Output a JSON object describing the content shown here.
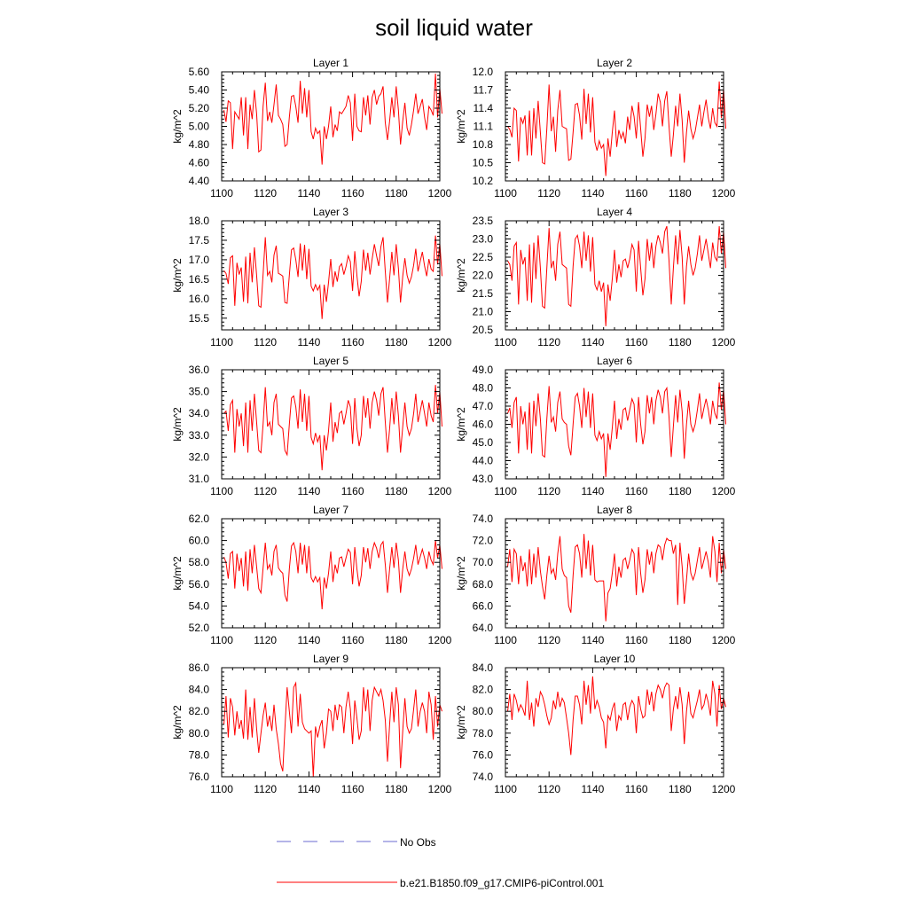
{
  "figure": {
    "title": "soil liquid water",
    "legend": [
      {
        "label": "No Obs",
        "color": "#6a6ad0",
        "dash": "dashed"
      },
      {
        "label": "b.e21.B1850.f09_g17.CMIP6-piControl.001",
        "color": "#ff0000",
        "dash": "solid"
      }
    ]
  },
  "chart_data": [
    {
      "type": "line",
      "title": "Layer 1",
      "xlabel": "",
      "ylabel": "kg/m^2",
      "xlim": [
        1100,
        1200
      ],
      "ylim": [
        4.4,
        5.6
      ],
      "xticks": [
        "1100",
        "1120",
        "1140",
        "1160",
        "1180",
        "1200"
      ],
      "yticks": [
        "4.40",
        "4.60",
        "4.80",
        "5.00",
        "5.20",
        "5.40",
        "5.60"
      ],
      "x_start": 1101,
      "values": [
        5.18,
        5.05,
        5.28,
        5.26,
        4.75,
        5.16,
        5.12,
        5.08,
        5.32,
        4.9,
        5.32,
        4.75,
        5.24,
        5.08,
        5.4,
        5.14,
        4.72,
        4.74,
        5.22,
        5.48,
        5.06,
        5.16,
        5.04,
        5.24,
        5.46,
        5.12,
        5.08,
        5.02,
        4.78,
        4.8,
        5.1,
        5.33,
        5.34,
        5.22,
        5.04,
        5.5,
        5.14,
        5.42,
        5.1,
        5.4,
        4.94,
        4.86,
        4.98,
        4.92,
        4.95,
        4.58,
        5.0,
        4.86,
        5.0,
        5.22,
        4.88,
        5.02,
        4.95,
        5.16,
        5.14,
        5.18,
        5.22,
        5.34,
        5.26,
        4.84,
        5.36,
        5.0,
        4.95,
        4.94,
        5.32,
        5.12,
        5.34,
        5.02,
        5.32,
        5.4,
        5.24,
        5.33,
        5.36,
        5.44,
        5.04,
        4.85,
        5.06,
        5.32,
        5.1,
        5.44,
        5.18,
        4.8,
        5.06,
        5.26,
        4.98,
        4.9,
        5.02,
        5.18,
        5.36,
        5.14,
        5.22,
        5.3,
        5.1,
        4.96,
        5.22,
        5.18,
        5.12,
        5.58,
        5.1,
        5.42,
        5.14
      ]
    },
    {
      "type": "line",
      "title": "Layer 2",
      "xlabel": "",
      "ylabel": "kg/m^2",
      "xlim": [
        1100,
        1200
      ],
      "ylim": [
        10.2,
        12.0
      ],
      "xticks": [
        "1100",
        "1120",
        "1140",
        "1160",
        "1180",
        "1200"
      ],
      "yticks": [
        "10.2",
        "10.5",
        "10.8",
        "11.1",
        "11.4",
        "11.7",
        "12.0"
      ],
      "x_start": 1101,
      "values": [
        11.1,
        11.05,
        10.92,
        11.4,
        11.36,
        10.52,
        11.25,
        11.15,
        11.28,
        10.62,
        11.36,
        10.62,
        11.4,
        10.9,
        11.52,
        11.0,
        10.5,
        10.48,
        11.06,
        11.79,
        11.02,
        11.26,
        10.68,
        11.36,
        11.7,
        11.1,
        11.08,
        11.06,
        10.54,
        10.56,
        11.0,
        11.46,
        11.48,
        11.28,
        10.88,
        11.72,
        11.14,
        11.64,
        11.0,
        11.58,
        10.84,
        10.7,
        10.86,
        10.74,
        10.8,
        10.28,
        10.9,
        10.6,
        11.0,
        11.36,
        10.76,
        11.04,
        10.9,
        11.0,
        10.82,
        11.26,
        11.04,
        11.44,
        11.26,
        10.9,
        11.5,
        11.06,
        10.6,
        10.9,
        11.46,
        11.26,
        11.44,
        11.04,
        11.3,
        11.64,
        11.5,
        11.1,
        11.52,
        11.68,
        11.1,
        10.6,
        10.96,
        11.44,
        11.1,
        11.64,
        11.2,
        10.5,
        11.0,
        11.36,
        11.06,
        10.9,
        11.02,
        11.24,
        11.46,
        11.1,
        11.34,
        11.54,
        11.24,
        11.06,
        11.4,
        11.16,
        11.1,
        11.84,
        11.24,
        11.72,
        11.06
      ]
    },
    {
      "type": "line",
      "title": "Layer 3",
      "xlabel": "",
      "ylabel": "kg/m^2",
      "xlim": [
        1100,
        1200
      ],
      "ylim": [
        15.2,
        18.0
      ],
      "xticks": [
        "1100",
        "1120",
        "1140",
        "1160",
        "1180",
        "1200"
      ],
      "yticks": [
        "15.5",
        "16.0",
        "16.5",
        "17.0",
        "17.5",
        "18.0"
      ],
      "x_start": 1101,
      "values": [
        16.72,
        16.65,
        16.38,
        17.05,
        17.1,
        15.82,
        16.92,
        16.62,
        16.8,
        15.92,
        17.08,
        15.88,
        17.18,
        16.42,
        17.32,
        16.6,
        15.82,
        15.78,
        16.62,
        17.58,
        16.6,
        16.7,
        16.42,
        17.12,
        17.36,
        16.65,
        16.62,
        16.58,
        15.9,
        15.88,
        16.6,
        17.25,
        17.3,
        17.0,
        16.56,
        17.42,
        16.72,
        17.38,
        16.5,
        17.28,
        16.32,
        16.2,
        16.36,
        16.22,
        16.34,
        15.48,
        16.36,
        15.92,
        16.42,
        17.02,
        16.3,
        16.7,
        16.44,
        16.82,
        16.9,
        16.62,
        16.82,
        17.1,
        16.95,
        16.2,
        17.22,
        16.6,
        16.06,
        16.44,
        17.26,
        16.72,
        17.18,
        16.62,
        17.02,
        17.4,
        17.1,
        16.84,
        17.34,
        17.58,
        16.7,
        15.9,
        16.52,
        17.2,
        16.6,
        17.4,
        16.78,
        15.9,
        16.58,
        17.04,
        16.6,
        16.4,
        16.56,
        16.86,
        17.28,
        16.7,
        16.96,
        17.2,
        16.84,
        16.58,
        17.02,
        16.76,
        16.7,
        17.62,
        16.88,
        17.42,
        16.58
      ]
    },
    {
      "type": "line",
      "title": "Layer 4",
      "xlabel": "",
      "ylabel": "kg/m^2",
      "xlim": [
        1100,
        1200
      ],
      "ylim": [
        20.5,
        23.5
      ],
      "xticks": [
        "1100",
        "1120",
        "1140",
        "1160",
        "1180",
        "1200"
      ],
      "yticks": [
        "20.5",
        "21.0",
        "21.5",
        "22.0",
        "22.5",
        "23.0",
        "23.5"
      ],
      "x_start": 1101,
      "values": [
        22.4,
        22.3,
        21.85,
        22.8,
        22.9,
        21.2,
        22.7,
        22.3,
        22.5,
        21.3,
        22.85,
        21.25,
        22.9,
        21.9,
        23.1,
        22.2,
        21.15,
        21.1,
        22.2,
        23.3,
        22.2,
        22.4,
        21.85,
        22.85,
        23.2,
        22.3,
        22.25,
        22.2,
        21.2,
        21.15,
        22.25,
        23.0,
        23.1,
        22.8,
        22.2,
        23.2,
        22.4,
        23.1,
        22.1,
        23.05,
        21.75,
        21.6,
        21.85,
        21.55,
        21.8,
        20.6,
        21.75,
        21.3,
        21.9,
        22.7,
        21.8,
        22.3,
        21.95,
        22.4,
        22.45,
        22.2,
        22.45,
        22.85,
        22.7,
        21.55,
        22.95,
        22.2,
        21.45,
        21.9,
        23.0,
        22.4,
        22.9,
        22.2,
        22.8,
        23.1,
        22.9,
        22.6,
        23.2,
        23.35,
        22.4,
        21.2,
        22.2,
        23.1,
        22.3,
        23.25,
        22.5,
        21.2,
        22.25,
        22.8,
        22.3,
        22.0,
        22.2,
        22.6,
        23.1,
        22.4,
        22.7,
        23.0,
        22.6,
        22.2,
        22.9,
        22.5,
        22.4,
        23.35,
        22.6,
        23.2,
        22.2
      ]
    },
    {
      "type": "line",
      "title": "Layer 5",
      "xlabel": "",
      "ylabel": "kg/m^2",
      "xlim": [
        1100,
        1200
      ],
      "ylim": [
        31.0,
        36.0
      ],
      "xticks": [
        "1100",
        "1120",
        "1140",
        "1160",
        "1180",
        "1200"
      ],
      "yticks": [
        "31.0",
        "32.0",
        "33.0",
        "34.0",
        "35.0",
        "36.0"
      ],
      "x_start": 1101,
      "values": [
        34.0,
        34.1,
        33.2,
        34.4,
        34.6,
        32.2,
        34.2,
        33.4,
        34.0,
        32.5,
        34.5,
        32.2,
        34.6,
        33.2,
        34.9,
        33.6,
        32.3,
        32.2,
        33.5,
        35.2,
        33.4,
        33.6,
        33.0,
        34.5,
        34.9,
        33.5,
        33.4,
        33.3,
        32.3,
        32.1,
        33.5,
        34.7,
        34.8,
        34.3,
        33.3,
        35.1,
        33.6,
        34.9,
        33.2,
        34.8,
        32.9,
        32.6,
        33.1,
        32.7,
        33.0,
        31.4,
        33.0,
        32.3,
        33.2,
        34.5,
        32.7,
        33.6,
        33.1,
        34.0,
        34.1,
        33.5,
        34.0,
        34.6,
        34.3,
        32.6,
        34.7,
        33.3,
        32.5,
        33.0,
        34.8,
        33.8,
        34.7,
        33.3,
        34.5,
        35.0,
        34.6,
        33.9,
        34.9,
        35.2,
        33.6,
        32.2,
        33.3,
        34.7,
        33.5,
        35.0,
        33.9,
        32.2,
        33.4,
        34.5,
        33.4,
        33.0,
        33.3,
        34.0,
        34.9,
        33.6,
        34.1,
        34.6,
        34.0,
        33.4,
        34.5,
        33.9,
        33.6,
        35.3,
        34.0,
        35.0,
        33.4
      ]
    },
    {
      "type": "line",
      "title": "Layer 6",
      "xlabel": "",
      "ylabel": "kg/m^2",
      "xlim": [
        1100,
        1200
      ],
      "ylim": [
        43.0,
        49.0
      ],
      "xticks": [
        "1100",
        "1120",
        "1140",
        "1160",
        "1180",
        "1200"
      ],
      "yticks": [
        "43.0",
        "44.0",
        "45.0",
        "46.0",
        "47.0",
        "48.0",
        "49.0"
      ],
      "x_start": 1101,
      "values": [
        46.6,
        46.9,
        45.8,
        47.2,
        47.5,
        44.4,
        47.0,
        46.0,
        46.7,
        44.6,
        47.2,
        44.4,
        47.3,
        45.9,
        47.7,
        46.3,
        44.3,
        44.2,
        46.3,
        48.1,
        46.1,
        46.4,
        45.6,
        47.2,
        47.8,
        46.3,
        46.1,
        46.0,
        44.8,
        44.3,
        46.0,
        47.5,
        47.7,
        47.0,
        45.8,
        48.0,
        46.4,
        47.8,
        45.8,
        47.7,
        45.4,
        45.1,
        45.6,
        45.2,
        45.5,
        43.1,
        45.5,
        44.6,
        45.8,
        47.3,
        45.2,
        46.3,
        45.7,
        46.8,
        46.9,
        46.2,
        46.8,
        47.4,
        47.1,
        45.0,
        47.5,
        46.0,
        44.9,
        45.6,
        47.6,
        46.6,
        47.5,
        46.0,
        47.3,
        47.9,
        47.5,
        46.6,
        47.8,
        48.0,
        46.4,
        44.2,
        45.9,
        47.6,
        46.1,
        47.9,
        46.7,
        44.1,
        46.0,
        47.3,
        46.0,
        45.6,
        46.0,
        46.8,
        47.7,
        46.3,
        46.9,
        47.4,
        46.8,
        46.0,
        47.3,
        46.6,
        46.3,
        48.3,
        46.8,
        47.9,
        46.0
      ]
    },
    {
      "type": "line",
      "title": "Layer 7",
      "xlabel": "",
      "ylabel": "kg/m^2",
      "xlim": [
        1100,
        1200
      ],
      "ylim": [
        52.0,
        62.0
      ],
      "xticks": [
        "1100",
        "1120",
        "1140",
        "1160",
        "1180",
        "1200"
      ],
      "yticks": [
        "52.0",
        "54.0",
        "56.0",
        "58.0",
        "60.0",
        "62.0"
      ],
      "x_start": 1101,
      "values": [
        58.5,
        58.0,
        56.5,
        58.8,
        59.0,
        55.6,
        58.8,
        57.2,
        58.4,
        55.8,
        59.0,
        55.4,
        59.2,
        57.0,
        59.6,
        57.6,
        55.6,
        55.2,
        57.5,
        59.8,
        57.4,
        57.8,
        56.8,
        59.0,
        59.6,
        57.5,
        57.2,
        57.0,
        55.0,
        54.4,
        57.4,
        59.5,
        59.8,
        59.0,
        57.0,
        59.8,
        57.8,
        59.6,
        57.0,
        59.5,
        56.6,
        56.2,
        56.7,
        56.2,
        56.6,
        53.7,
        56.6,
        55.6,
        57.0,
        59.0,
        56.2,
        57.8,
        57.0,
        58.4,
        58.5,
        57.6,
        58.4,
        59.2,
        58.9,
        56.0,
        59.4,
        57.4,
        55.8,
        56.8,
        59.4,
        58.0,
        59.3,
        57.4,
        59.0,
        59.8,
        59.3,
        58.4,
        59.6,
        59.9,
        57.8,
        55.2,
        57.4,
        59.4,
        57.5,
        59.8,
        58.2,
        55.2,
        57.4,
        59.0,
        57.4,
        56.8,
        57.4,
        58.4,
        59.6,
        57.8,
        58.5,
        59.2,
        58.4,
        57.4,
        59.0,
        58.2,
        57.8,
        60.0,
        58.4,
        59.6,
        57.4
      ]
    },
    {
      "type": "line",
      "title": "Layer 8",
      "xlabel": "",
      "ylabel": "kg/m^2",
      "xlim": [
        1100,
        1200
      ],
      "ylim": [
        64.0,
        74.0
      ],
      "xticks": [
        "1100",
        "1120",
        "1140",
        "1160",
        "1180",
        "1200"
      ],
      "yticks": [
        "64.0",
        "66.0",
        "68.0",
        "70.0",
        "72.0",
        "74.0"
      ],
      "x_start": 1101,
      "values": [
        69.6,
        71.2,
        68.2,
        71.2,
        70.8,
        68.0,
        70.6,
        69.2,
        70.0,
        67.8,
        71.2,
        68.0,
        70.8,
        68.6,
        71.4,
        69.2,
        67.8,
        66.6,
        68.8,
        70.6,
        69.0,
        69.4,
        68.4,
        70.8,
        72.4,
        69.4,
        68.8,
        68.6,
        66.0,
        65.4,
        68.8,
        71.4,
        71.6,
        70.8,
        68.6,
        72.6,
        69.4,
        72.0,
        68.8,
        71.6,
        68.4,
        68.2,
        68.3,
        68.3,
        68.3,
        64.6,
        67.2,
        67.6,
        69.0,
        70.8,
        67.8,
        69.6,
        68.6,
        70.2,
        70.4,
        69.4,
        70.2,
        71.2,
        70.8,
        67.0,
        71.4,
        69.0,
        67.2,
        68.4,
        71.2,
        69.8,
        71.0,
        69.0,
        70.8,
        71.6,
        71.4,
        70.2,
        71.6,
        72.2,
        72.0,
        72.0,
        70.8,
        71.6,
        66.1,
        71.8,
        69.6,
        66.2,
        68.4,
        70.8,
        69.0,
        68.4,
        69.0,
        70.2,
        71.4,
        69.4,
        70.2,
        71.0,
        70.0,
        68.6,
        72.4,
        71.0,
        68.2,
        71.8,
        69.0,
        71.2,
        69.4
      ]
    },
    {
      "type": "line",
      "title": "Layer 9",
      "xlabel": "",
      "ylabel": "kg/m^2",
      "xlim": [
        1100,
        1200
      ],
      "ylim": [
        76.0,
        86.0
      ],
      "xticks": [
        "1100",
        "1120",
        "1140",
        "1160",
        "1180",
        "1200"
      ],
      "yticks": [
        "76.0",
        "78.0",
        "80.0",
        "82.0",
        "84.0",
        "86.0"
      ],
      "x_start": 1101,
      "values": [
        80.8,
        83.4,
        79.6,
        83.2,
        82.4,
        79.8,
        82.0,
        80.4,
        81.2,
        79.5,
        84.0,
        79.4,
        82.4,
        79.6,
        83.2,
        80.4,
        78.2,
        80.0,
        81.6,
        82.8,
        80.6,
        81.6,
        80.2,
        82.6,
        80.4,
        79.0,
        77.2,
        76.5,
        80.4,
        84.2,
        82.0,
        80.0,
        84.2,
        84.6,
        80.6,
        83.6,
        81.0,
        80.4,
        80.2,
        80.0,
        80.2,
        76.0,
        80.6,
        79.6,
        80.6,
        81.2,
        78.6,
        80.0,
        82.2,
        82.0,
        80.2,
        82.6,
        81.2,
        82.6,
        82.4,
        80.0,
        82.4,
        83.8,
        82.2,
        79.0,
        83.0,
        81.4,
        79.4,
        80.2,
        84.2,
        82.0,
        84.0,
        80.2,
        83.0,
        84.2,
        83.8,
        83.4,
        84.0,
        83.0,
        81.2,
        77.4,
        80.8,
        83.8,
        81.0,
        84.2,
        82.6,
        76.8,
        80.2,
        83.2,
        80.6,
        80.0,
        80.4,
        82.2,
        84.0,
        80.6,
        82.0,
        82.8,
        82.0,
        80.0,
        83.8,
        82.6,
        79.4,
        83.4,
        80.6,
        82.6,
        82.0
      ]
    },
    {
      "type": "line",
      "title": "Layer 10",
      "xlabel": "",
      "ylabel": "kg/m^2",
      "xlim": [
        1100,
        1200
      ],
      "ylim": [
        74.0,
        84.0
      ],
      "xticks": [
        "1100",
        "1120",
        "1140",
        "1160",
        "1180",
        "1200"
      ],
      "yticks": [
        "74.0",
        "76.0",
        "78.0",
        "80.0",
        "82.0",
        "84.0"
      ],
      "x_start": 1101,
      "values": [
        80.0,
        81.6,
        79.2,
        81.6,
        81.0,
        80.0,
        80.6,
        80.2,
        79.6,
        82.8,
        79.2,
        80.8,
        78.6,
        81.2,
        80.4,
        81.8,
        81.4,
        80.6,
        79.6,
        78.8,
        79.4,
        81.0,
        80.2,
        81.8,
        80.4,
        81.2,
        80.8,
        79.4,
        78.0,
        76.0,
        79.2,
        81.4,
        81.4,
        80.6,
        78.8,
        82.8,
        80.6,
        82.4,
        79.8,
        83.2,
        80.2,
        81.0,
        80.4,
        79.4,
        79.0,
        76.6,
        79.6,
        79.2,
        80.2,
        80.8,
        78.2,
        79.6,
        79.2,
        80.6,
        80.8,
        79.2,
        80.4,
        81.0,
        80.6,
        78.0,
        81.4,
        80.2,
        79.4,
        79.6,
        82.0,
        80.6,
        81.8,
        80.0,
        81.6,
        82.4,
        82.0,
        81.2,
        82.2,
        82.6,
        82.4,
        78.2,
        80.2,
        81.4,
        80.2,
        82.2,
        80.6,
        77.0,
        80.0,
        81.8,
        79.8,
        79.4,
        80.2,
        81.0,
        82.0,
        80.2,
        80.6,
        81.6,
        80.8,
        79.6,
        82.8,
        81.6,
        78.6,
        82.4,
        80.2,
        81.2,
        80.4
      ]
    }
  ]
}
